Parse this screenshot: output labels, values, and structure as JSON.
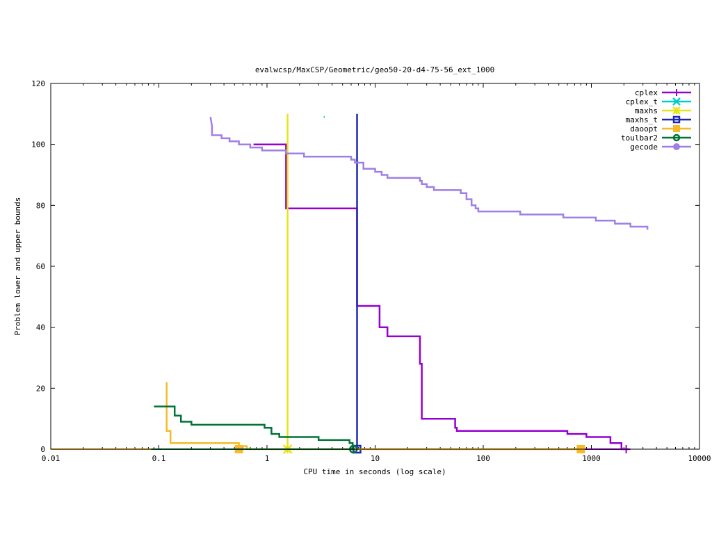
{
  "chart_data": {
    "type": "line",
    "title": "evalwcsp/MaxCSP/Geometric/geo50-20-d4-75-56_ext_1000",
    "xlabel": "CPU time in seconds (log scale)",
    "ylabel": "Problem lower and upper bounds",
    "xscale": "log",
    "xlim": [
      0.01,
      10000
    ],
    "ylim": [
      0,
      120
    ],
    "xticks": [
      {
        "value": 0.01,
        "label": "0.01"
      },
      {
        "value": 0.1,
        "label": "0.1"
      },
      {
        "value": 1,
        "label": "1"
      },
      {
        "value": 10,
        "label": "10"
      },
      {
        "value": 100,
        "label": "100"
      },
      {
        "value": 1000,
        "label": "1000"
      },
      {
        "value": 10000,
        "label": "10000"
      }
    ],
    "yticks": [
      {
        "value": 0,
        "label": "0"
      },
      {
        "value": 20,
        "label": "20"
      },
      {
        "value": 40,
        "label": "40"
      },
      {
        "value": 60,
        "label": "60"
      },
      {
        "value": 80,
        "label": "80"
      },
      {
        "value": 100,
        "label": "100"
      },
      {
        "value": 120,
        "label": "120"
      }
    ],
    "legend_position": "top-right",
    "series": [
      {
        "name": "cplex",
        "color": "#9400d3",
        "marker": "plus",
        "upper": [
          [
            0.75,
            100
          ],
          [
            1.5,
            100
          ],
          [
            1.5,
            79
          ],
          [
            6.8,
            79
          ],
          [
            6.8,
            47
          ],
          [
            11,
            47
          ],
          [
            11,
            40
          ],
          [
            13,
            40
          ],
          [
            13,
            37
          ],
          [
            26,
            37
          ],
          [
            26,
            28
          ],
          [
            27,
            28
          ],
          [
            27,
            10
          ],
          [
            55,
            10
          ],
          [
            55,
            7
          ],
          [
            57,
            7
          ],
          [
            57,
            6
          ],
          [
            600,
            6
          ],
          [
            600,
            5
          ],
          [
            900,
            5
          ],
          [
            900,
            4
          ],
          [
            1500,
            4
          ],
          [
            1500,
            2
          ],
          [
            1900,
            2
          ],
          [
            1900,
            0
          ],
          [
            2200,
            0
          ]
        ],
        "lower": [
          [
            0.01,
            0
          ],
          [
            2200,
            0
          ]
        ],
        "markers": [
          [
            2100,
            0
          ]
        ]
      },
      {
        "name": "cplex_t",
        "color": "#00cccc",
        "marker": "cross",
        "upper": [
          [
            3.35,
            109
          ],
          [
            3.42,
            109
          ]
        ],
        "lower": [],
        "markers": []
      },
      {
        "name": "maxhs",
        "color": "#e5e51a",
        "marker": "star",
        "upper": [
          [
            1.55,
            110
          ],
          [
            1.55,
            0
          ]
        ],
        "lower": [
          [
            0.01,
            0
          ],
          [
            1.55,
            0
          ]
        ],
        "markers": [
          [
            1.55,
            0
          ]
        ]
      },
      {
        "name": "maxhs_t",
        "color": "#1c28b4",
        "marker": "square",
        "upper": [
          [
            6.8,
            110
          ],
          [
            6.8,
            0
          ]
        ],
        "lower": [
          [
            0.01,
            0
          ],
          [
            6.8,
            0
          ]
        ],
        "markers": [
          [
            6.8,
            0
          ]
        ]
      },
      {
        "name": "daoopt",
        "color": "#f6bb27",
        "marker": "filled-square",
        "upper": [
          [
            0.118,
            22
          ],
          [
            0.118,
            6
          ],
          [
            0.128,
            6
          ],
          [
            0.128,
            2
          ],
          [
            0.55,
            2
          ],
          [
            0.55,
            1
          ],
          [
            0.65,
            1
          ],
          [
            0.65,
            0
          ],
          [
            800,
            0
          ]
        ],
        "lower": [
          [
            0.01,
            0
          ],
          [
            800,
            0
          ]
        ],
        "markers": [
          [
            0.55,
            0
          ],
          [
            800,
            0
          ]
        ]
      },
      {
        "name": "toulbar2",
        "color": "#007337",
        "marker": "circle",
        "upper": [
          [
            0.09,
            14
          ],
          [
            0.14,
            14
          ],
          [
            0.14,
            11
          ],
          [
            0.16,
            11
          ],
          [
            0.16,
            9
          ],
          [
            0.2,
            9
          ],
          [
            0.2,
            8
          ],
          [
            0.95,
            8
          ],
          [
            0.95,
            7
          ],
          [
            1.1,
            7
          ],
          [
            1.1,
            5
          ],
          [
            1.3,
            5
          ],
          [
            1.3,
            4
          ],
          [
            3,
            4
          ],
          [
            3,
            3
          ],
          [
            5.8,
            3
          ],
          [
            5.8,
            2
          ],
          [
            6.2,
            2
          ],
          [
            6.2,
            0
          ],
          [
            6.5,
            0
          ]
        ],
        "lower": [
          [
            0.085,
            0
          ],
          [
            6.5,
            0
          ]
        ],
        "markers": [
          [
            6.3,
            0
          ]
        ]
      },
      {
        "name": "gecode",
        "color": "#9f7fe6",
        "marker": "filled-circle",
        "upper": [
          [
            0.3,
            109
          ],
          [
            0.31,
            106
          ],
          [
            0.31,
            103
          ],
          [
            0.38,
            103
          ],
          [
            0.38,
            102
          ],
          [
            0.45,
            102
          ],
          [
            0.45,
            101
          ],
          [
            0.55,
            101
          ],
          [
            0.55,
            100
          ],
          [
            0.7,
            100
          ],
          [
            0.7,
            99
          ],
          [
            0.9,
            99
          ],
          [
            0.9,
            98
          ],
          [
            1.5,
            98
          ],
          [
            1.5,
            97
          ],
          [
            2.2,
            97
          ],
          [
            2.2,
            96
          ],
          [
            6,
            96
          ],
          [
            6,
            95
          ],
          [
            6.5,
            95
          ],
          [
            6.5,
            94
          ],
          [
            7.8,
            94
          ],
          [
            7.8,
            92
          ],
          [
            10,
            92
          ],
          [
            10,
            91
          ],
          [
            11.5,
            91
          ],
          [
            11.5,
            90
          ],
          [
            13,
            90
          ],
          [
            13,
            89
          ],
          [
            26,
            89
          ],
          [
            26,
            88
          ],
          [
            27,
            88
          ],
          [
            27,
            87
          ],
          [
            30,
            87
          ],
          [
            30,
            86
          ],
          [
            35,
            86
          ],
          [
            35,
            85
          ],
          [
            62,
            85
          ],
          [
            62,
            84
          ],
          [
            70,
            84
          ],
          [
            70,
            82
          ],
          [
            78,
            82
          ],
          [
            78,
            80
          ],
          [
            85,
            80
          ],
          [
            85,
            79
          ],
          [
            90,
            79
          ],
          [
            90,
            78
          ],
          [
            220,
            78
          ],
          [
            220,
            77
          ],
          [
            550,
            77
          ],
          [
            550,
            76
          ],
          [
            1100,
            76
          ],
          [
            1100,
            75
          ],
          [
            1650,
            75
          ],
          [
            1650,
            74
          ],
          [
            2300,
            74
          ],
          [
            2300,
            73
          ],
          [
            3300,
            73
          ],
          [
            3300,
            72
          ]
        ],
        "lower": [],
        "markers": []
      }
    ]
  }
}
